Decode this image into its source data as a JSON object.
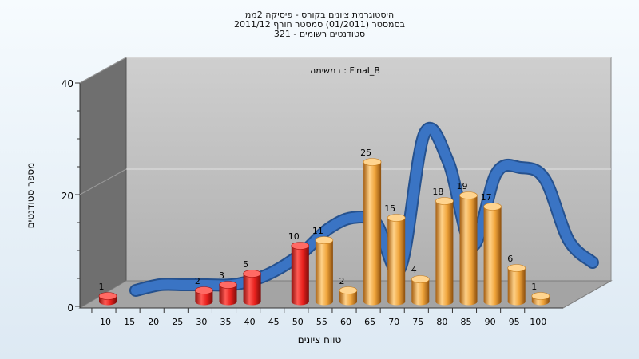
{
  "chart_data": {
    "type": "bar",
    "title_lines": [
      "היסטוגרמת ציונים בקורס - פיסיקה 2ממ",
      "בסמסטר  (01/2011)  סמסטר חורף 2011/12",
      "321 - סטודנטים רשומים"
    ],
    "annotation": "במשימה : Final_B",
    "xlabel": "טווח ציונים",
    "ylabel": "מספר סטודנטים",
    "yticks": [
      "0",
      "20",
      "40"
    ],
    "ylim": [
      0,
      40
    ],
    "x_ticks": [
      "10",
      "15",
      "20",
      "25",
      "30",
      "35",
      "40",
      "45",
      "50",
      "55",
      "60",
      "65",
      "70",
      "75",
      "80",
      "85",
      "90",
      "95",
      "100"
    ],
    "values": [
      1,
      0,
      0,
      0,
      2,
      3,
      5,
      0,
      10,
      11,
      2,
      25,
      15,
      4,
      18,
      19,
      17,
      6,
      1
    ],
    "trend": [
      0,
      1,
      1,
      1,
      1,
      2,
      4,
      7,
      11,
      13,
      12,
      4,
      28,
      23,
      8,
      21,
      22,
      20,
      9,
      5
    ],
    "colors": {
      "fail": "#e8211d",
      "pass": "#f0a43a",
      "trend": "#3a74c4"
    },
    "grid": true
  }
}
